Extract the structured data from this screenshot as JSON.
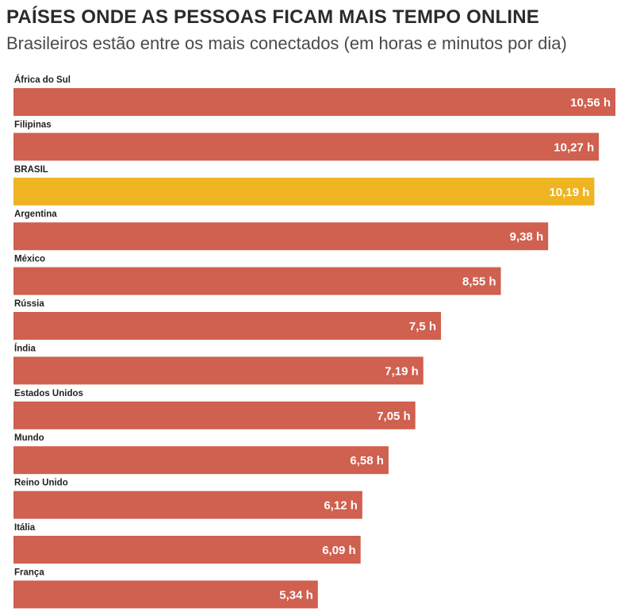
{
  "header": {
    "title": "PAÍSES ONDE AS PESSOAS FICAM MAIS TEMPO ONLINE",
    "subtitle": "Brasileiros estão entre os mais conectados (em horas e minutos por dia)"
  },
  "colors": {
    "bar": "#d0604f",
    "highlight": "#eeb421",
    "value_text": "#ffffff",
    "label_text": "#222222"
  },
  "chart_data": {
    "type": "bar",
    "orientation": "horizontal",
    "title": "PAÍSES ONDE AS PESSOAS FICAM MAIS TEMPO ONLINE",
    "subtitle": "Brasileiros estão entre os mais conectados (em horas e minutos por dia)",
    "categories": [
      "África do Sul",
      "Filipinas",
      "BRASIL",
      "Argentina",
      "México",
      "Rússia",
      "Índia",
      "Estados Unidos",
      "Mundo",
      "Reino Unido",
      "Itália",
      "França"
    ],
    "values": [
      10.56,
      10.27,
      10.19,
      9.38,
      8.55,
      7.5,
      7.19,
      7.05,
      6.58,
      6.12,
      6.09,
      5.34
    ],
    "value_labels": [
      "10,56 h",
      "10,27 h",
      "10,19 h",
      "9,38 h",
      "8,55 h",
      "7,5 h",
      "7,19 h",
      "7,05 h",
      "6,58 h",
      "6,12 h",
      "6,09 h",
      "5,34 h"
    ],
    "highlight_category": "BRASIL",
    "xlim": [
      0,
      10.56
    ],
    "grid": false,
    "legend": "none",
    "xlabel": "",
    "ylabel": ""
  }
}
